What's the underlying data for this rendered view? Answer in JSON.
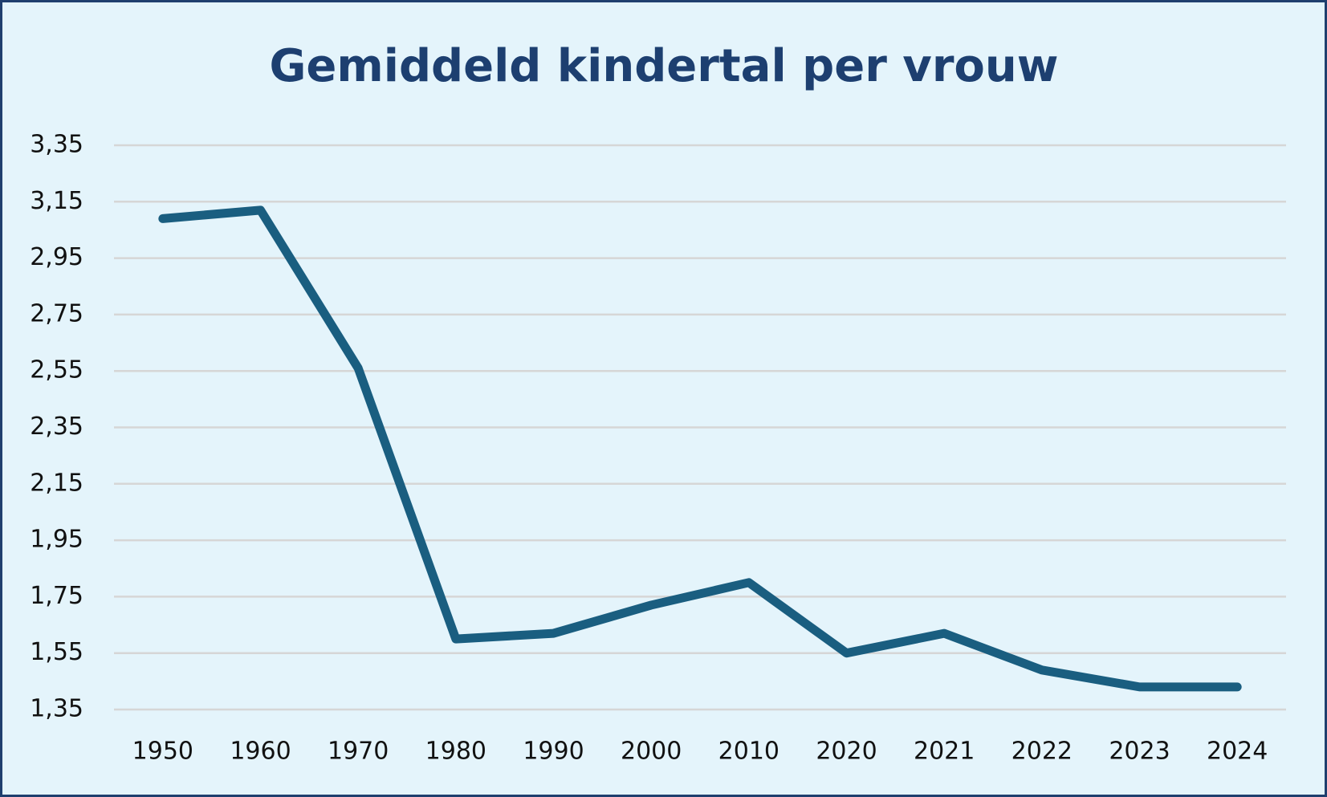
{
  "chart_data": {
    "type": "line",
    "title": "Gemiddeld kindertal per vrouw",
    "categories": [
      "1950",
      "1960",
      "1970",
      "1980",
      "1990",
      "2000",
      "2010",
      "2020",
      "2021",
      "2022",
      "2023",
      "2024"
    ],
    "series": [
      {
        "name": "Gemiddeld kindertal per vrouw",
        "color": "#1a5e80",
        "values": [
          3.09,
          3.12,
          2.56,
          1.6,
          1.62,
          1.72,
          1.8,
          1.55,
          1.62,
          1.49,
          1.43,
          1.43
        ]
      }
    ],
    "ylim": [
      1.35,
      3.35
    ],
    "yticks": [
      {
        "value": 1.35,
        "label": "1,35"
      },
      {
        "value": 1.55,
        "label": "1,55"
      },
      {
        "value": 1.75,
        "label": "1,75"
      },
      {
        "value": 1.95,
        "label": "1,95"
      },
      {
        "value": 2.15,
        "label": "2,15"
      },
      {
        "value": 2.35,
        "label": "2,35"
      },
      {
        "value": 2.55,
        "label": "2,55"
      },
      {
        "value": 2.75,
        "label": "2,75"
      },
      {
        "value": 2.95,
        "label": "2,95"
      },
      {
        "value": 3.15,
        "label": "3,15"
      },
      {
        "value": 3.35,
        "label": "3,35"
      }
    ],
    "grid": true
  }
}
